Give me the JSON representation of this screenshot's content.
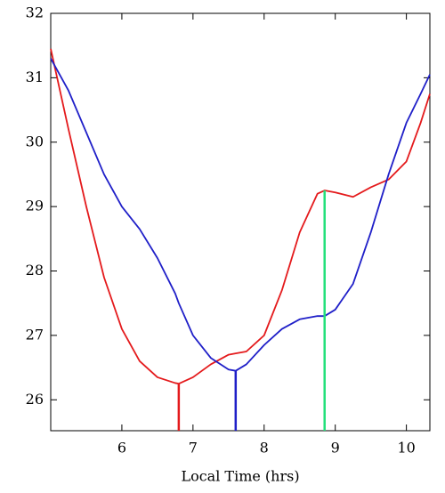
{
  "chart_data": {
    "type": "line",
    "x_label": "Local Time (hrs)",
    "x": [
      5.0,
      5.25,
      5.5,
      5.75,
      6.0,
      6.25,
      6.5,
      6.75,
      6.8,
      7.0,
      7.25,
      7.5,
      7.6,
      7.75,
      8.0,
      8.25,
      8.5,
      8.75,
      8.85,
      9.0,
      9.25,
      9.5,
      9.75,
      10.0,
      10.2,
      10.33
    ],
    "series": [
      {
        "color": "#e41a1c",
        "values": [
          31.45,
          30.2,
          29.0,
          27.9,
          27.1,
          26.6,
          26.35,
          26.26,
          26.25,
          26.35,
          26.55,
          26.7,
          26.72,
          26.75,
          27.0,
          27.7,
          28.6,
          29.2,
          29.25,
          29.22,
          29.15,
          29.3,
          29.42,
          29.7,
          30.3,
          30.75
        ]
      },
      {
        "color": "#1f1fc8",
        "values": [
          31.3,
          30.8,
          30.15,
          29.5,
          29.0,
          28.65,
          28.2,
          27.65,
          27.5,
          27.0,
          26.65,
          26.47,
          26.45,
          26.55,
          26.85,
          27.1,
          27.25,
          27.3,
          27.3,
          27.4,
          27.8,
          28.6,
          29.5,
          30.3,
          30.75,
          31.05
        ]
      }
    ],
    "markers": [
      {
        "x": 6.8,
        "y": 26.25,
        "color": "#e41a1c"
      },
      {
        "x": 7.6,
        "y": 26.45,
        "color": "#1f1fc8"
      },
      {
        "x": 8.85,
        "y": 29.25,
        "color": "#22e07a"
      }
    ],
    "xlim": [
      5.0,
      10.33
    ],
    "ylim": [
      25.52,
      32
    ],
    "xticks": [
      6,
      7,
      8,
      9,
      10
    ],
    "yticks": [
      26,
      27,
      28,
      29,
      30,
      31,
      32
    ]
  }
}
